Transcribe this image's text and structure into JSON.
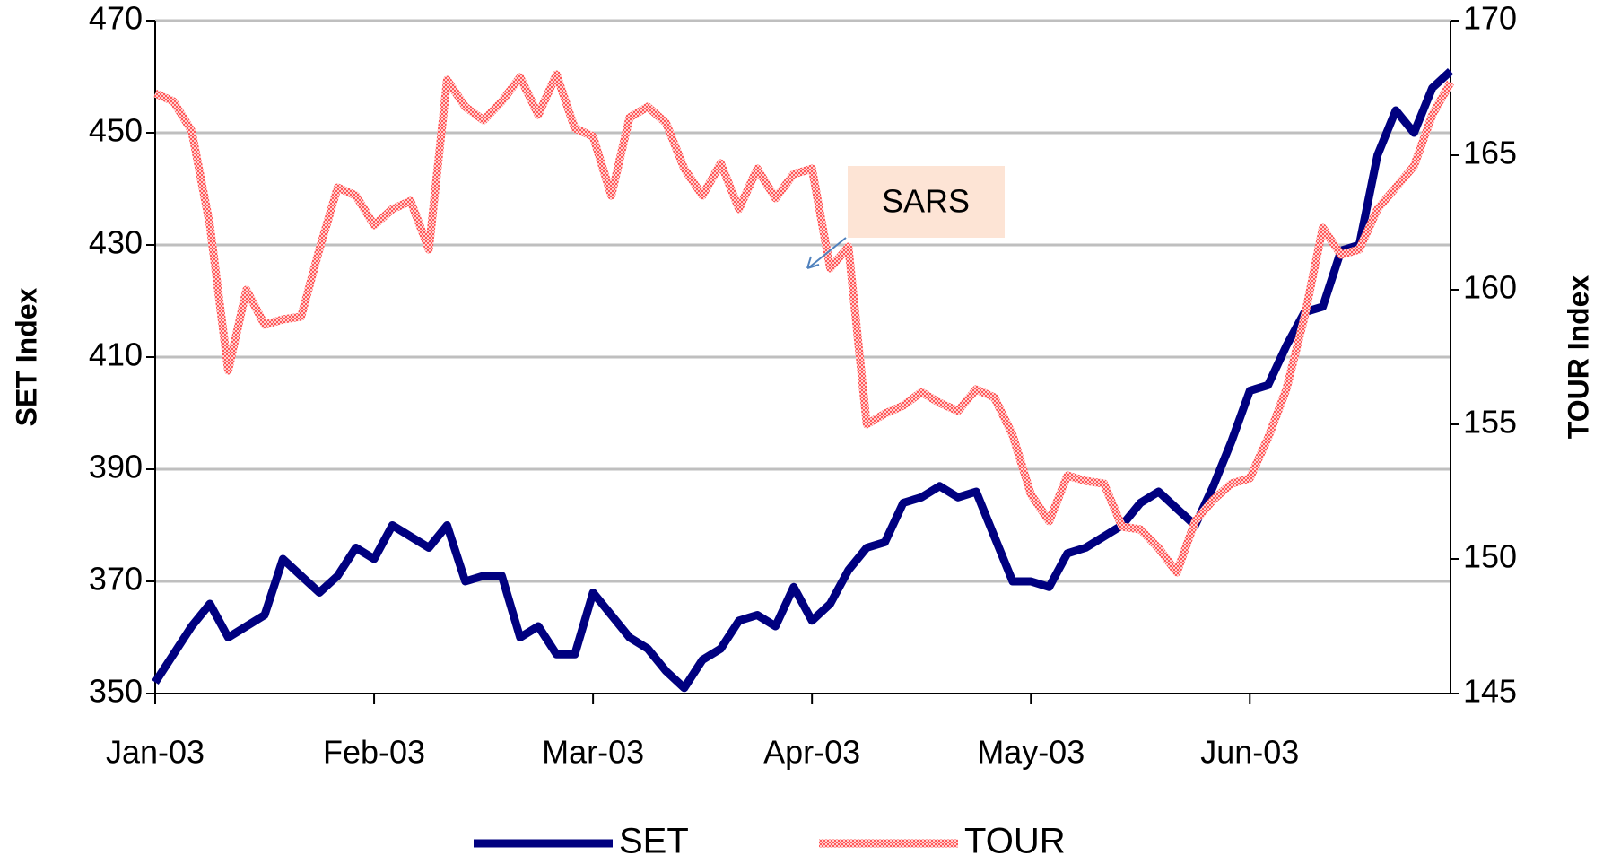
{
  "chart_data": {
    "type": "line",
    "categories": [
      "Jan-03",
      null,
      null,
      null,
      null,
      null,
      null,
      null,
      null,
      null,
      null,
      null,
      "Feb-03",
      null,
      null,
      null,
      null,
      null,
      null,
      null,
      null,
      null,
      null,
      null,
      "Mar-03",
      null,
      null,
      null,
      null,
      null,
      null,
      null,
      null,
      null,
      null,
      null,
      "Apr-03",
      null,
      null,
      null,
      null,
      null,
      null,
      null,
      null,
      null,
      null,
      null,
      "May-03",
      null,
      null,
      null,
      null,
      null,
      null,
      null,
      null,
      null,
      null,
      null,
      "Jun-03",
      null,
      null,
      null,
      null,
      null,
      null,
      null,
      null,
      null,
      null,
      null
    ],
    "series": [
      {
        "name": "SET",
        "color": "#000080",
        "axis": "y",
        "values": [
          352,
          357,
          362,
          366,
          360,
          362,
          364,
          374,
          371,
          368,
          371,
          376,
          374,
          380,
          378,
          376,
          380,
          370,
          371,
          371,
          360,
          362,
          357,
          357,
          368,
          364,
          360,
          358,
          354,
          351,
          356,
          358,
          363,
          364,
          362,
          369,
          363,
          366,
          372,
          376,
          377,
          384,
          385,
          387,
          385,
          386,
          378,
          370,
          370,
          369,
          375,
          376,
          378,
          380,
          384,
          386,
          383,
          380,
          387,
          395,
          404,
          405,
          412,
          418,
          419,
          429,
          430,
          446,
          454,
          450,
          458,
          461
        ]
      },
      {
        "name": "TOUR",
        "color": "#ff4040",
        "axis": "y2",
        "values": [
          167.3,
          167,
          165.9,
          162.4,
          157,
          160,
          158.7,
          158.9,
          159,
          161.5,
          163.8,
          163.5,
          162.4,
          163,
          163.3,
          161.5,
          167.8,
          166.8,
          166.3,
          167,
          167.9,
          166.5,
          168,
          166,
          165.7,
          163.5,
          166.4,
          166.8,
          166.2,
          164.5,
          163.5,
          164.7,
          163,
          164.5,
          163.4,
          164.3,
          164.5,
          160.8,
          161.6,
          155,
          155.4,
          155.7,
          156.2,
          155.8,
          155.5,
          156.3,
          156,
          154.6,
          152.4,
          151.4,
          153.1,
          152.9,
          152.8,
          151.2,
          151.1,
          150.4,
          149.5,
          151.4,
          152.2,
          152.8,
          153,
          154.5,
          156.3,
          159,
          162.3,
          161.3,
          161.5,
          163,
          163.8,
          164.6,
          166.5,
          167.7
        ]
      }
    ],
    "y_label": "SET Index",
    "y2_label": "TOUR Index",
    "ylim": [
      350,
      470
    ],
    "yticks": [
      350,
      370,
      390,
      410,
      430,
      450,
      470
    ],
    "y2lim": [
      145,
      170
    ],
    "y2ticks": [
      145,
      150,
      155,
      160,
      165,
      170
    ],
    "grid": true,
    "legend": "bottom",
    "annotations": [
      {
        "text": "SARS"
      }
    ]
  }
}
